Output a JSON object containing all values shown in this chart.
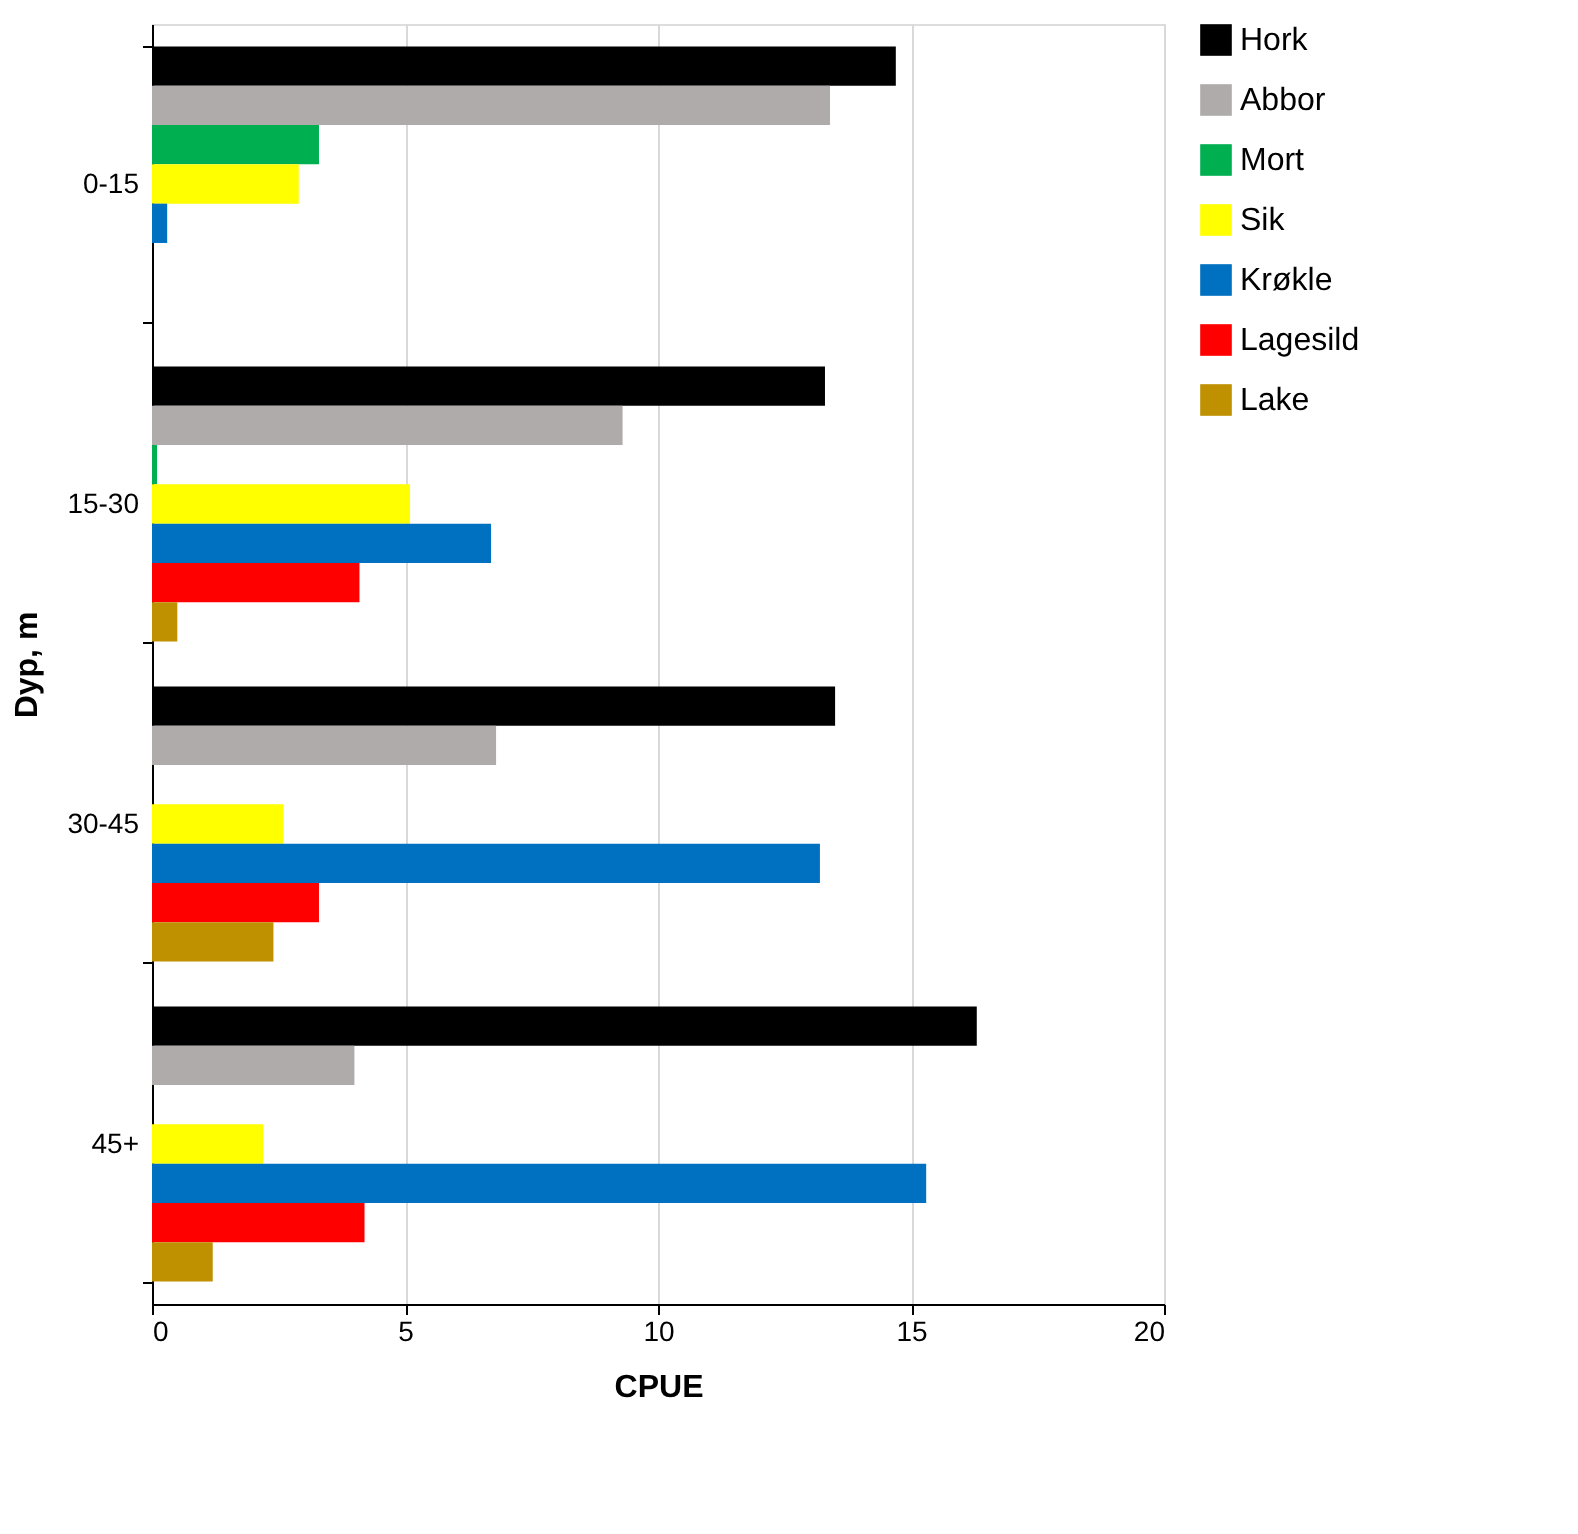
{
  "chart_data": {
    "type": "bar",
    "orientation": "horizontal",
    "xlabel": "CPUE",
    "ylabel": "Dyp, m",
    "categories": [
      "0-15",
      "15-30",
      "30-45",
      "45+"
    ],
    "series": [
      {
        "name": "Hork",
        "color": "#000000",
        "values": [
          14.7,
          13.3,
          13.5,
          16.3
        ]
      },
      {
        "name": "Abbor",
        "color": "#afabab",
        "values": [
          13.4,
          9.3,
          6.8,
          4.0
        ]
      },
      {
        "name": "Mort",
        "color": "#00b050",
        "values": [
          3.3,
          0.1,
          0,
          0
        ]
      },
      {
        "name": "Sik",
        "color": "#ffff00",
        "values": [
          2.9,
          5.1,
          2.6,
          2.2
        ]
      },
      {
        "name": "Krøkle",
        "color": "#0070c0",
        "values": [
          0.3,
          6.7,
          13.2,
          15.3
        ]
      },
      {
        "name": "Lagesild",
        "color": "#ff0000",
        "values": [
          0,
          4.1,
          3.3,
          4.2
        ]
      },
      {
        "name": "Lake",
        "color": "#bf9000",
        "values": [
          0,
          0.5,
          2.4,
          1.2
        ]
      }
    ],
    "xlim": [
      0,
      20
    ],
    "xticks": [
      0,
      5,
      10,
      15,
      20
    ],
    "grid": "x",
    "legend": "right"
  }
}
